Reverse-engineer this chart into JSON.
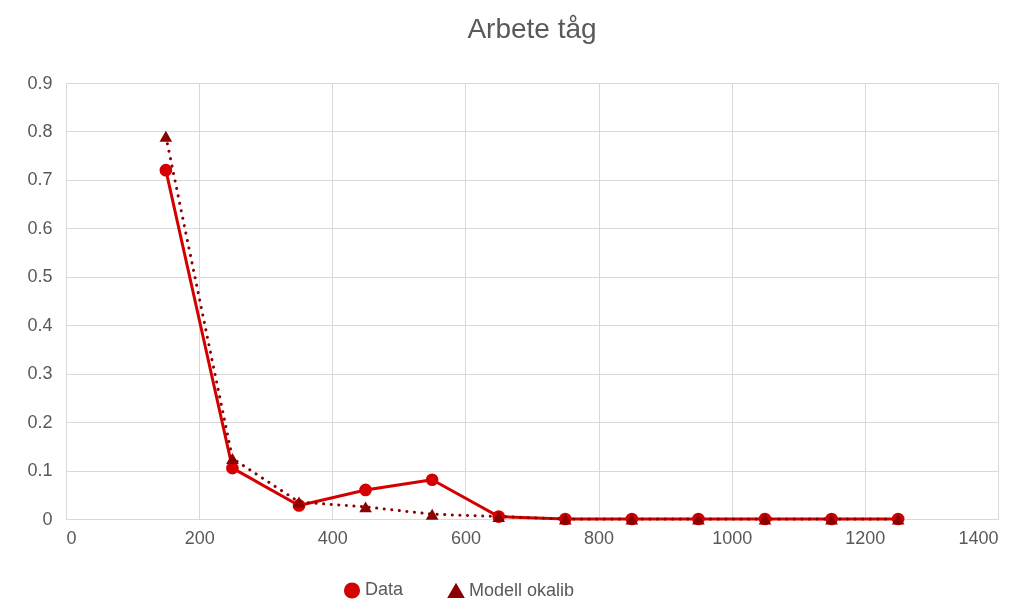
{
  "chart_data": {
    "type": "line",
    "title": "Arbete tåg",
    "x": [
      150,
      250,
      350,
      450,
      550,
      650,
      750,
      850,
      950,
      1050,
      1150,
      1250
    ],
    "series": [
      {
        "name": "Data",
        "color": "#d40000",
        "marker": "circle",
        "line_style": "solid",
        "values": [
          0.72,
          0.105,
          0.028,
          0.06,
          0.081,
          0.005,
          0,
          0,
          0,
          0,
          0,
          0
        ]
      },
      {
        "name": "Modell okalib",
        "color": "#8b0000",
        "marker": "triangle",
        "line_style": "dotted",
        "values": [
          0.79,
          0.125,
          0.035,
          0.025,
          0.01,
          0.005,
          0,
          0,
          0,
          0,
          0,
          0
        ]
      }
    ],
    "xlim": [
      0,
      1400
    ],
    "xticks": [
      0,
      200,
      400,
      600,
      800,
      1000,
      1200,
      1400
    ],
    "ylim": [
      0,
      0.9
    ],
    "yticks": [
      0,
      0.1,
      0.2,
      0.3,
      0.4,
      0.5,
      0.6,
      0.7,
      0.8,
      0.9
    ],
    "grid": true,
    "legend": "bottom"
  }
}
